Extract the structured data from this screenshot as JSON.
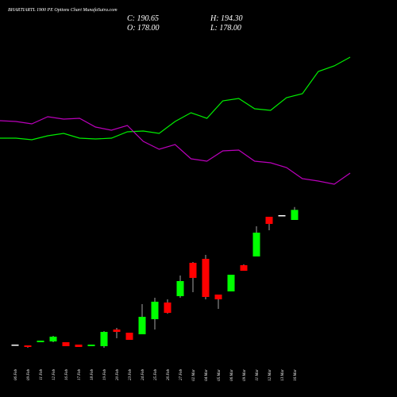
{
  "chart_data": {
    "type": "candlestick",
    "title": "BHARTIARTL 1900 PE Options Chart MunafaSutra.com",
    "annotations": [
      "C: 190.65",
      "H: 194.30",
      "O: 178.00",
      "L: 178.00"
    ],
    "categories": [
      "06 Feb",
      "09 Feb",
      "11 Feb",
      "12 Feb",
      "16 Feb",
      "17 Feb",
      "18 Feb",
      "19 Feb",
      "20 Feb",
      "23 Feb",
      "24 Feb",
      "25 Feb",
      "26 Feb",
      "27 Feb",
      "02 Mar",
      "04 Mar",
      "05 Mar",
      "06 Mar",
      "09 Mar",
      "11 Mar",
      "12 Mar",
      "13 Mar",
      "16 Mar"
    ],
    "open": [
      20,
      20,
      24,
      25,
      24,
      21,
      19,
      19,
      40,
      36,
      34,
      53,
      74,
      82,
      124,
      129,
      84,
      88,
      121,
      132,
      182,
      183,
      178
    ],
    "high": [
      21,
      20,
      26,
      32,
      24,
      21,
      21,
      38,
      42,
      36,
      72,
      80,
      78,
      108,
      125,
      134,
      84,
      109,
      122,
      170,
      182,
      184,
      194.3
    ],
    "low": [
      20,
      17,
      24,
      24,
      19,
      18,
      19,
      17,
      29,
      27,
      34,
      40,
      60,
      80,
      87,
      78,
      66,
      88,
      114,
      132,
      165,
      183,
      178
    ],
    "close": [
      21,
      18,
      26,
      31,
      19,
      18,
      21,
      37,
      37,
      27,
      56,
      75,
      61,
      101,
      105,
      81,
      78,
      109,
      114,
      162,
      173,
      184,
      190.65
    ],
    "up_color": "#00ff00",
    "down_color": "#ff0000",
    "flat_color": "#ffffff",
    "ylim": [
      -45,
      455
    ],
    "y2lim": [
      0,
      500
    ],
    "series": [
      {
        "color": "#00ee00",
        "axis": "y2",
        "values": [
          326,
          326,
          324,
          329,
          332,
          326,
          325,
          326,
          334,
          335,
          332,
          347,
          358,
          351,
          373,
          376,
          363,
          361,
          377,
          382,
          410,
          417,
          428
        ]
      },
      {
        "color": "#bb00bb",
        "axis": "y2",
        "values": [
          348,
          347,
          344,
          353,
          350,
          351,
          340,
          336,
          342,
          322,
          312,
          318,
          300,
          297,
          310,
          311,
          297,
          295,
          289,
          275,
          272,
          268,
          282
        ]
      }
    ]
  }
}
